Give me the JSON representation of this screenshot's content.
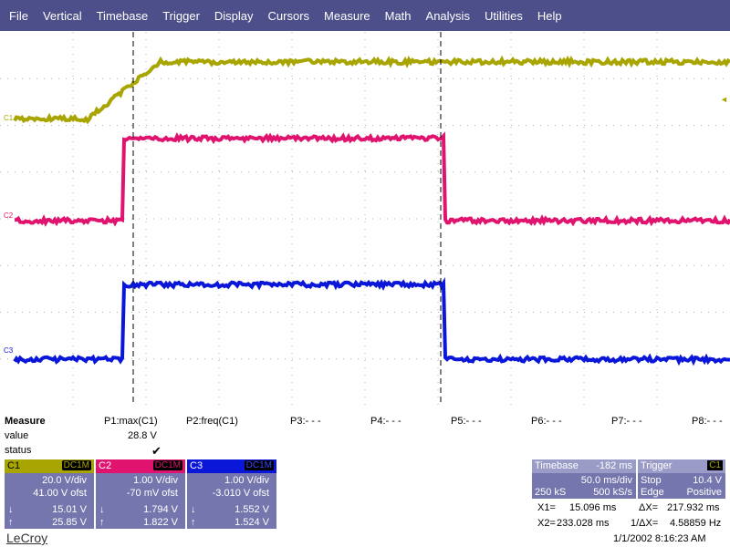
{
  "menu": [
    "File",
    "Vertical",
    "Timebase",
    "Trigger",
    "Display",
    "Cursors",
    "Measure",
    "Math",
    "Analysis",
    "Utilities",
    "Help"
  ],
  "colors": {
    "menubar": "#4d4f8a",
    "panel": "#7576ad",
    "c1": "#a8a400",
    "c2": "#e0136e",
    "c3": "#0a17d8",
    "grid": "#9a9a9a"
  },
  "screen": {
    "channels": [
      {
        "name": "C1",
        "label": "C1",
        "low_level_y": 0.233,
        "high_level_y": 0.08,
        "rise_start": 0.12,
        "rise_end": 0.22
      },
      {
        "name": "C2",
        "label": "C2",
        "low_level_y": 0.505,
        "high_level_y": 0.285,
        "rise_start": 0.17,
        "fall": 0.61
      },
      {
        "name": "C3",
        "label": "C3",
        "low_level_y": 0.876,
        "high_level_y": 0.676,
        "rise_start": 0.17,
        "fall": 0.61
      }
    ],
    "trigger_marker": "◄"
  },
  "measure": {
    "title": "Measure",
    "row_labels": [
      "value",
      "status"
    ],
    "params": [
      {
        "label": "P1:max(C1)",
        "value": "28.8 V",
        "status": "✔"
      },
      {
        "label": "P2:freq(C1)",
        "value": "",
        "status": ""
      },
      {
        "label": "P3:- - -",
        "value": "",
        "status": ""
      },
      {
        "label": "P4:- - -",
        "value": "",
        "status": ""
      },
      {
        "label": "P5:- - -",
        "value": "",
        "status": ""
      },
      {
        "label": "P6:- - -",
        "value": "",
        "status": ""
      },
      {
        "label": "P7:- - -",
        "value": "",
        "status": ""
      },
      {
        "label": "P8:- - -",
        "value": "",
        "status": ""
      }
    ]
  },
  "channel_boxes": [
    {
      "name": "C1",
      "coupling": "DC1M",
      "vdiv": "20.0 V/div",
      "offset": "41.00 V ofst",
      "down": "15.01 V",
      "up": "25.85 V",
      "color": "#a8a400",
      "text": "#000"
    },
    {
      "name": "C2",
      "coupling": "DC1M",
      "vdiv": "1.00 V/div",
      "offset": "-70 mV ofst",
      "down": "1.794 V",
      "up": "1.822 V",
      "color": "#e0136e",
      "text": "#fff"
    },
    {
      "name": "C3",
      "coupling": "DC1M",
      "vdiv": "1.00 V/div",
      "offset": "-3.010 V ofst",
      "down": "1.552 V",
      "up": "1.524 V",
      "color": "#0a17d8",
      "text": "#fff"
    }
  ],
  "timebase": {
    "label": "Timebase",
    "delay": "-182 ms",
    "tdiv": "50.0 ms/div",
    "samples": "250 kS",
    "rate": "500 kS/s"
  },
  "trigger": {
    "label": "Trigger",
    "source": "C1",
    "mode": "Stop",
    "level": "10.4 V",
    "type": "Edge",
    "slope": "Positive"
  },
  "cursors": {
    "x1_label": "X1=",
    "x1": "15.096 ms",
    "dx_label": "ΔX=",
    "dx": "217.932 ms",
    "x2_label": "X2=",
    "x2": "233.028 ms",
    "inv_label": "1/ΔX=",
    "inv": "4.58859 Hz"
  },
  "footer": {
    "logo": "LeCroy",
    "datetime": "1/1/2002 8:16:23 AM"
  }
}
